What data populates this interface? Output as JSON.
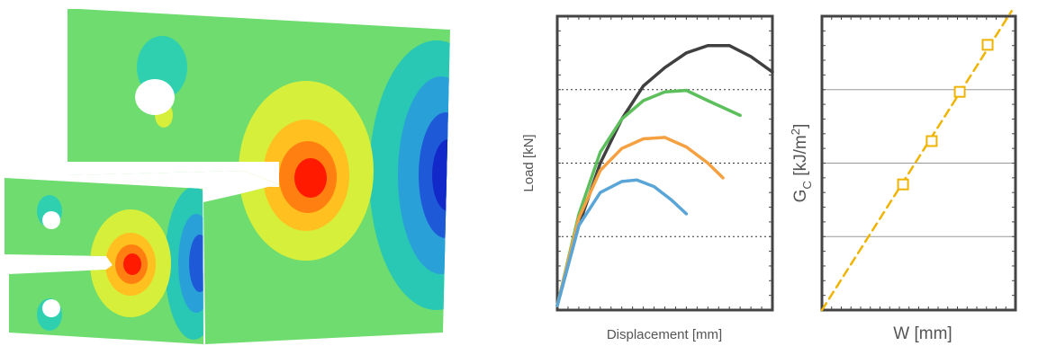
{
  "chart_data": [
    {
      "type": "line",
      "xlabel": "Displacement [mm]",
      "ylabel": "Load [kN]",
      "xlim": [
        0,
        10
      ],
      "ylim": [
        0,
        4
      ],
      "yticks": [
        1,
        2,
        3
      ],
      "grid": "dotted",
      "series": [
        {
          "color": "#404040",
          "x": [
            0,
            1,
            2,
            3,
            4,
            5,
            6,
            7,
            8,
            9,
            10
          ],
          "values": [
            0.06,
            1.15,
            2.0,
            2.6,
            3.05,
            3.3,
            3.5,
            3.6,
            3.6,
            3.45,
            3.24
          ]
        },
        {
          "color": "#5cbf5c",
          "x": [
            0,
            1,
            2,
            3,
            4,
            5,
            6,
            7,
            8.5
          ],
          "values": [
            0.06,
            1.3,
            2.15,
            2.6,
            2.85,
            2.97,
            2.99,
            2.85,
            2.65
          ]
        },
        {
          "color": "#f5a142",
          "x": [
            0,
            1,
            2,
            3,
            4,
            5,
            6,
            7,
            7.7
          ],
          "values": [
            0.06,
            1.25,
            1.9,
            2.2,
            2.33,
            2.35,
            2.22,
            2.0,
            1.8
          ]
        },
        {
          "color": "#5aa5d8",
          "x": [
            0,
            1,
            2,
            3,
            3.7,
            4.5,
            5.3,
            6
          ],
          "values": [
            0.06,
            1.15,
            1.6,
            1.75,
            1.77,
            1.68,
            1.5,
            1.31
          ]
        }
      ]
    },
    {
      "type": "scatter",
      "xlabel": "W [mm]",
      "ylabel_parts": [
        "G",
        "C",
        " [kJ/m",
        "2",
        "]"
      ],
      "xlim": [
        0,
        10
      ],
      "ylim": [
        0,
        4
      ],
      "yticks": [
        1,
        2,
        3
      ],
      "grid": "solid",
      "series": [
        {
          "color": "#f0b400",
          "x": [
            4.19,
            5.67,
            7.12,
            8.56
          ],
          "values": [
            1.71,
            2.3,
            2.97,
            3.61
          ]
        }
      ],
      "trend": {
        "color": "#f0b400",
        "x": [
          0,
          9.8
        ],
        "values": [
          0,
          4.07
        ]
      }
    }
  ]
}
